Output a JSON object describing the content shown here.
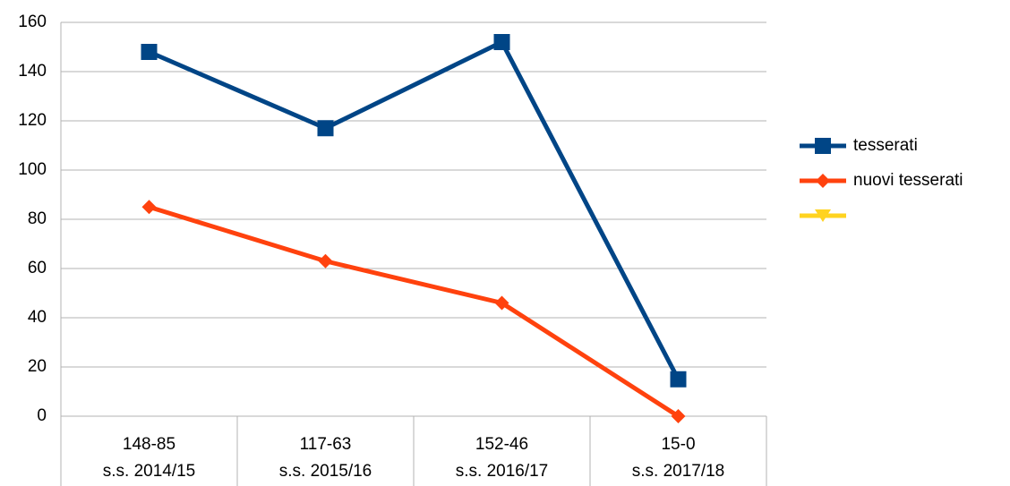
{
  "chart_data": {
    "type": "line",
    "categories": [
      [
        "148-85",
        "s.s. 2014/15"
      ],
      [
        "117-63",
        "s.s. 2015/16"
      ],
      [
        "152-46",
        "s.s. 2016/17"
      ],
      [
        "15-0",
        "s.s. 2017/18"
      ]
    ],
    "series": [
      {
        "name": "tesserati",
        "color": "#004586",
        "marker": "square",
        "values": [
          148,
          117,
          152,
          15
        ]
      },
      {
        "name": "nuovi tesserati",
        "color": "#ff420e",
        "marker": "diamond",
        "values": [
          85,
          63,
          46,
          0
        ]
      },
      {
        "color": "#ffd320",
        "marker": "triangle",
        "values": [
          null,
          null,
          null,
          null
        ]
      }
    ],
    "ylim": [
      0,
      160
    ],
    "yticks": [
      0,
      20,
      40,
      60,
      80,
      100,
      120,
      140,
      160
    ],
    "grid": true,
    "legend": "right"
  }
}
